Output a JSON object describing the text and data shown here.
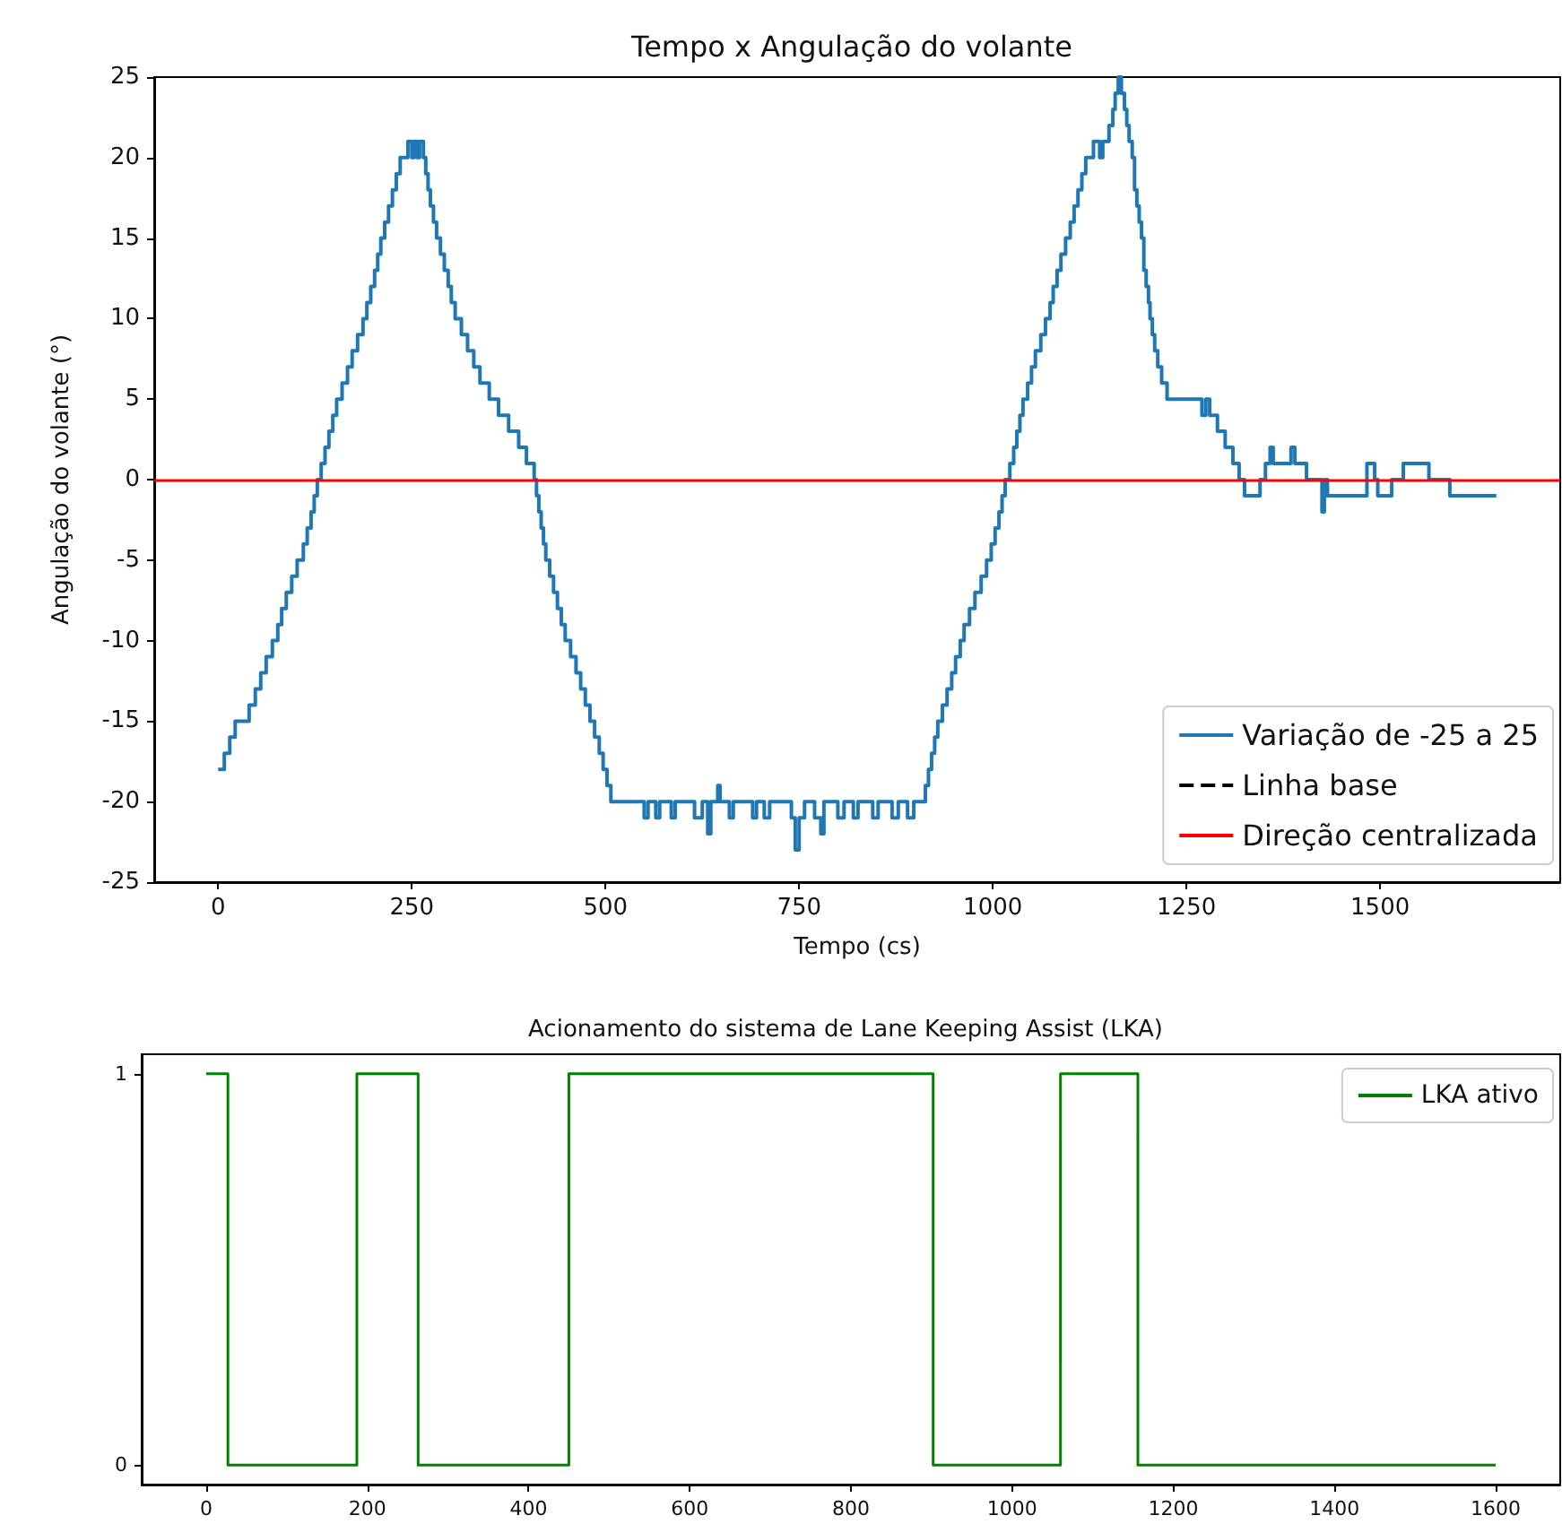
{
  "chart_data": [
    {
      "type": "step",
      "title": "Tempo x Angulação do volante",
      "xlabel": "Tempo (cs)",
      "ylabel": "Angulação do volante (°)",
      "xlim": [
        -82.5,
        1732.5
      ],
      "xticks": [
        0,
        250,
        500,
        750,
        1000,
        1250,
        1500
      ],
      "ylim": [
        -25,
        25
      ],
      "yticks": [
        -25,
        -20,
        -15,
        -10,
        -5,
        0,
        5,
        10,
        15,
        20,
        25
      ],
      "grid": false,
      "legend": "bottom right",
      "series": [
        {
          "name": "Variação de -25 a 25",
          "color": "#1f77b4",
          "x": [
            0,
            8,
            15,
            22,
            40,
            48,
            55,
            62,
            70,
            77,
            82,
            88,
            95,
            102,
            110,
            115,
            120,
            124,
            128,
            133,
            138,
            143,
            148,
            153,
            160,
            167,
            173,
            180,
            187,
            192,
            197,
            202,
            206,
            210,
            215,
            220,
            225,
            230,
            235,
            245,
            250,
            253,
            257,
            260,
            265,
            268,
            271,
            274,
            278,
            282,
            287,
            292,
            297,
            301,
            306,
            314,
            322,
            330,
            338,
            350,
            362,
            375,
            388,
            398,
            408,
            411,
            414,
            417,
            420,
            423,
            428,
            433,
            438,
            443,
            448,
            455,
            462,
            468,
            474,
            480,
            486,
            492,
            497,
            502,
            507,
            550,
            555,
            565,
            570,
            585,
            590,
            615,
            625,
            632,
            636,
            645,
            648,
            660,
            665,
            690,
            695,
            705,
            712,
            740,
            745,
            750,
            757,
            770,
            778,
            782,
            800,
            808,
            820,
            826,
            845,
            852,
            870,
            878,
            890,
            898,
            913,
            917,
            921,
            925,
            929,
            935,
            941,
            947,
            952,
            958,
            963,
            970,
            977,
            985,
            992,
            998,
            1003,
            1008,
            1012,
            1016,
            1022,
            1027,
            1031,
            1035,
            1039,
            1045,
            1050,
            1055,
            1062,
            1068,
            1074,
            1078,
            1083,
            1088,
            1094,
            1100,
            1105,
            1110,
            1115,
            1120,
            1130,
            1138,
            1142,
            1150,
            1155,
            1158,
            1162,
            1166,
            1170,
            1173,
            1176,
            1180,
            1183,
            1186,
            1189,
            1192,
            1195,
            1198,
            1201,
            1203,
            1206,
            1209,
            1213,
            1218,
            1225,
            1270,
            1275,
            1280,
            1290,
            1300,
            1310,
            1318,
            1325,
            1345,
            1352,
            1358,
            1362,
            1385,
            1390,
            1405,
            1425,
            1428,
            1432,
            1483,
            1493,
            1497,
            1515,
            1530,
            1563,
            1590,
            1650
          ],
          "values": [
            -18,
            -17,
            -16,
            -15,
            -14,
            -13,
            -12,
            -11,
            -10,
            -9,
            -8,
            -7,
            -6,
            -5,
            -4,
            -3,
            -2,
            -1,
            0,
            1,
            2,
            3,
            4,
            5,
            6,
            7,
            8,
            9,
            10,
            11,
            12,
            13,
            14,
            15,
            16,
            17,
            18,
            19,
            20,
            21,
            20,
            21,
            20,
            21,
            20,
            19,
            18,
            17,
            16,
            15,
            14,
            13,
            12,
            11,
            10,
            9,
            8,
            7,
            6,
            5,
            4,
            3,
            2,
            1,
            0,
            -1,
            -2,
            -3,
            -4,
            -5,
            -6,
            -7,
            -8,
            -9,
            -10,
            -11,
            -12,
            -13,
            -14,
            -15,
            -16,
            -17,
            -18,
            -19,
            -20,
            -21,
            -20,
            -21,
            -20,
            -21,
            -20,
            -21,
            -20,
            -22,
            -20,
            -19,
            -20,
            -21,
            -20,
            -21,
            -20,
            -21,
            -20,
            -21,
            -23,
            -21,
            -20,
            -21,
            -22,
            -20,
            -21,
            -20,
            -21,
            -20,
            -21,
            -20,
            -21,
            -20,
            -21,
            -20,
            -19,
            -18,
            -17,
            -16,
            -15,
            -14,
            -13,
            -12,
            -11,
            -10,
            -9,
            -8,
            -7,
            -6,
            -5,
            -4,
            -3,
            -2,
            -1,
            0,
            1,
            2,
            3,
            4,
            5,
            6,
            7,
            8,
            9,
            10,
            11,
            12,
            13,
            14,
            15,
            16,
            17,
            18,
            19,
            20,
            21,
            20,
            21,
            22,
            23,
            24,
            25,
            24,
            23,
            22,
            21,
            20,
            18,
            17,
            16,
            15,
            13,
            12,
            11,
            10,
            9,
            8,
            7,
            6,
            5,
            4,
            5,
            4,
            3,
            2,
            1,
            0,
            -1,
            0,
            1,
            2,
            1,
            2,
            1,
            0,
            -2,
            0,
            -1,
            1,
            0,
            -1,
            0,
            1,
            0,
            -1,
            -1
          ]
        },
        {
          "name": "Linha base",
          "type": "line",
          "color": "#000000",
          "line_style": "dashed"
        }
      ],
      "ref_lines": [
        {
          "axis": "y",
          "value": 0,
          "label": "Direção centralizada",
          "color": "#ff0000"
        }
      ]
    },
    {
      "type": "step",
      "title": "Acionamento do sistema de Lane Keeping Assist (LKA)",
      "xlim": [
        -80,
        1680
      ],
      "xticks": [
        0,
        200,
        400,
        600,
        800,
        1000,
        1200,
        1400,
        1600
      ],
      "ylim": [
        -0.05,
        1.05
      ],
      "yticks": [
        0,
        1
      ],
      "grid": false,
      "legend": "top right",
      "series": [
        {
          "name": "LKA ativo",
          "color": "#008000",
          "x": [
            0,
            27,
            187,
            263,
            450,
            902,
            1060,
            1156,
            1600
          ],
          "values": [
            1,
            0,
            1,
            0,
            1,
            0,
            1,
            0,
            0
          ]
        }
      ]
    }
  ]
}
